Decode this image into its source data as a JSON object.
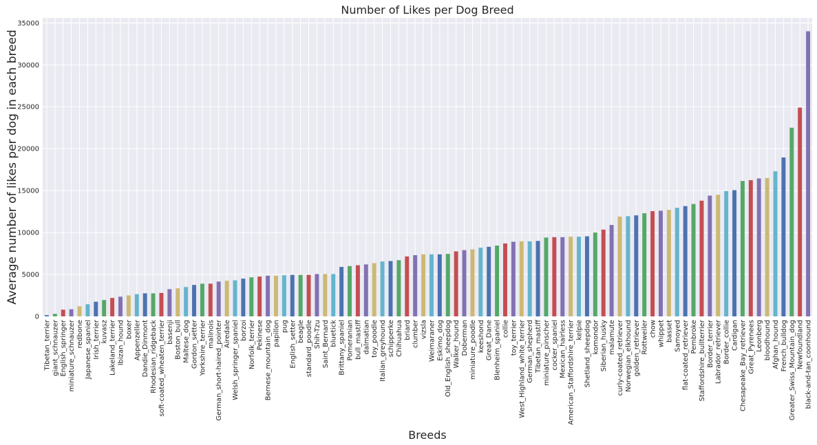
{
  "chart_data": {
    "type": "bar",
    "title": "Number of Likes per Dog Breed",
    "x_label": "Breeds",
    "y_label": "Average number of likes per dog in each breed",
    "categories": [
      "Tibetan_terrier",
      "giant_schnauzer",
      "English_springer",
      "miniature_schnauzer",
      "redbone",
      "Japanese_spaniel",
      "Irish_terrier",
      "kuvasz",
      "Lakeland_terrier",
      "Ibizan_hound",
      "boxer",
      "Appenzeller",
      "Dandie_Dinmont",
      "Rhodesian_ridgeback",
      "soft-coated_wheaten_terrier",
      "basenji",
      "Boston_bull",
      "Maltese_dog",
      "Gordon_setter",
      "Yorkshire_terrier",
      "malinois",
      "German_short-haired_pointer",
      "Airedale",
      "Welsh_springer_spaniel",
      "borzoi",
      "Norfolk_terrier",
      "Pekinese",
      "Bernese_mountain_dog",
      "papillon",
      "pug",
      "English_setter",
      "beagle",
      "standard_poodle",
      "Shih-Tzu",
      "Saint_Bernard",
      "bluetick",
      "Brittany_spaniel",
      "Pomeranian",
      "bull_mastiff",
      "dalmatian",
      "toy_poodle",
      "Italian_greyhound",
      "schipperke",
      "Chihuahua",
      "briard",
      "clumber",
      "vizsla",
      "Weimaraner",
      "Eskimo_dog",
      "Old_English_sheepdog",
      "Walker_hound",
      "Doberman",
      "miniature_poodle",
      "keeshond",
      "Great_Dane",
      "Blenheim_spaniel",
      "collie",
      "toy_terrier",
      "West_Highland_white_terrier",
      "German_shepherd",
      "Tibetan_mastiff",
      "miniature_pinscher",
      "cocker_spaniel",
      "Mexican_hairless",
      "American_Staffordshire_terrier",
      "kelpie",
      "Shetland_sheepdog",
      "komondor",
      "Siberian_husky",
      "malamute",
      "curly-coated_retriever",
      "Norwegian_elkhound",
      "golden_retriever",
      "Rottweiler",
      "chow",
      "whippet",
      "basset",
      "Samoyed",
      "flat-coated_retriever",
      "Pembroke",
      "Staffordshire_bullterrier",
      "Border_terrier",
      "Labrador_retriever",
      "Border_collie",
      "Cardigan",
      "Chesapeake_Bay_retriever",
      "Great_Pyrenees",
      "Leonberg",
      "bloodhound",
      "Afghan_hound",
      "French_bulldog",
      "Greater_Swiss_Mountain_dog",
      "Newfoundland",
      "black-and-tan_coonhound"
    ],
    "values": [
      150,
      300,
      800,
      850,
      1200,
      1450,
      1750,
      1950,
      2200,
      2350,
      2500,
      2650,
      2750,
      2750,
      2800,
      3250,
      3350,
      3500,
      3750,
      3900,
      3900,
      4150,
      4250,
      4300,
      4500,
      4650,
      4750,
      4850,
      4850,
      4900,
      4950,
      4950,
      4950,
      5050,
      5050,
      5050,
      5900,
      6000,
      6100,
      6200,
      6350,
      6550,
      6600,
      6700,
      7150,
      7300,
      7400,
      7400,
      7400,
      7450,
      7750,
      7900,
      8000,
      8200,
      8300,
      8450,
      8700,
      8900,
      8950,
      8950,
      9000,
      9400,
      9450,
      9450,
      9500,
      9500,
      9550,
      10000,
      10350,
      10900,
      11900,
      11950,
      12050,
      12300,
      12550,
      12600,
      12700,
      12950,
      13150,
      13400,
      13800,
      14400,
      14500,
      14950,
      15050,
      16150,
      16250,
      16450,
      16500,
      17300,
      18950,
      22500,
      24900,
      34000
    ],
    "colors": [
      "#4c72b0",
      "#55a868",
      "#c44e52",
      "#8172b2",
      "#ccb974",
      "#64b5cd"
    ],
    "ylim": [
      0,
      35600
    ],
    "yticks": [
      0,
      5000,
      10000,
      15000,
      20000,
      25000,
      30000,
      35000
    ],
    "grid": true
  }
}
